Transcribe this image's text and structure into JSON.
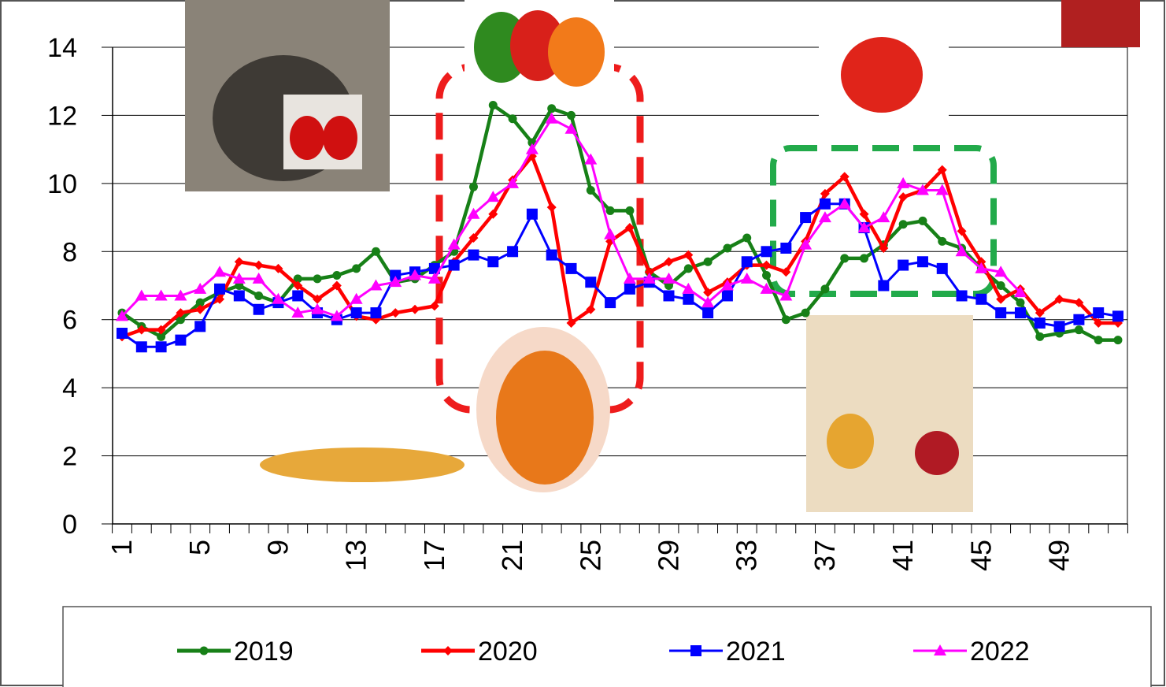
{
  "chart_data": {
    "type": "line",
    "categories": [
      1,
      null,
      null,
      null,
      5,
      null,
      null,
      null,
      9,
      null,
      null,
      null,
      13,
      null,
      null,
      null,
      17,
      null,
      null,
      null,
      21,
      null,
      null,
      null,
      25,
      null,
      null,
      null,
      29,
      null,
      null,
      null,
      33,
      null,
      null,
      null,
      37,
      null,
      null,
      null,
      41,
      null,
      null,
      null,
      45,
      null,
      null,
      null,
      49,
      null,
      null,
      null
    ],
    "ylim": [
      0,
      14
    ],
    "yticks": [
      0,
      2,
      4,
      6,
      8,
      10,
      12,
      14
    ],
    "grid": true,
    "series": [
      {
        "name": "2019",
        "color": "#178017",
        "marker": "circle",
        "values": [
          6.2,
          5.8,
          5.5,
          6.0,
          6.5,
          6.8,
          7.0,
          6.7,
          6.5,
          7.2,
          7.2,
          7.3,
          7.5,
          8.0,
          7.1,
          7.2,
          7.6,
          8.0,
          9.9,
          12.3,
          11.9,
          11.2,
          12.2,
          12.0,
          9.8,
          9.2,
          9.2,
          7.4,
          7.0,
          7.5,
          7.7,
          8.1,
          8.4,
          7.3,
          6.0,
          6.2,
          6.9,
          7.8,
          7.8,
          8.2,
          8.8,
          8.9,
          8.3,
          8.1,
          7.5,
          7.0,
          6.5,
          5.5,
          5.6,
          5.7,
          5.4,
          5.4
        ]
      },
      {
        "name": "2020",
        "color": "#ff0000",
        "marker": "diamond",
        "values": [
          5.5,
          5.7,
          5.7,
          6.2,
          6.3,
          6.6,
          7.7,
          7.6,
          7.5,
          7.0,
          6.6,
          7.0,
          6.1,
          6.0,
          6.2,
          6.3,
          6.4,
          7.7,
          8.4,
          9.1,
          10.1,
          10.8,
          9.3,
          5.9,
          6.3,
          8.3,
          8.7,
          7.4,
          7.7,
          7.9,
          6.8,
          7.1,
          7.6,
          7.6,
          7.4,
          8.3,
          9.7,
          10.2,
          9.1,
          8.1,
          9.6,
          9.8,
          10.4,
          8.6,
          7.7,
          6.6,
          6.9,
          6.2,
          6.6,
          6.5,
          5.9,
          5.9
        ]
      },
      {
        "name": "2021",
        "color": "#0000ff",
        "marker": "square",
        "values": [
          5.6,
          5.2,
          5.2,
          5.4,
          5.8,
          6.9,
          6.7,
          6.3,
          6.5,
          6.7,
          6.2,
          6.0,
          6.2,
          6.2,
          7.3,
          7.4,
          7.5,
          7.6,
          7.9,
          7.7,
          8.0,
          9.1,
          7.9,
          7.5,
          7.1,
          6.5,
          6.9,
          7.1,
          6.7,
          6.6,
          6.2,
          6.7,
          7.7,
          8.0,
          8.1,
          9.0,
          9.4,
          9.4,
          8.7,
          7.0,
          7.6,
          7.7,
          7.5,
          6.7,
          6.6,
          6.2,
          6.2,
          5.9,
          5.8,
          6.0,
          6.2,
          6.1
        ]
      },
      {
        "name": "2022",
        "color": "#ff00ff",
        "marker": "triangle",
        "values": [
          6.1,
          6.7,
          6.7,
          6.7,
          6.9,
          7.4,
          7.2,
          7.2,
          6.6,
          6.2,
          6.3,
          6.1,
          6.6,
          7.0,
          7.1,
          7.3,
          7.2,
          8.2,
          9.1,
          9.6,
          10.0,
          11.0,
          11.9,
          11.6,
          10.7,
          8.5,
          7.2,
          7.2,
          7.2,
          6.9,
          6.5,
          7.0,
          7.2,
          6.9,
          6.7,
          8.2,
          9.0,
          9.4,
          8.7,
          9.0,
          10.0,
          9.8,
          9.8,
          8.0,
          7.5,
          7.4,
          6.8,
          null,
          null,
          null,
          null,
          null
        ]
      }
    ]
  }
}
